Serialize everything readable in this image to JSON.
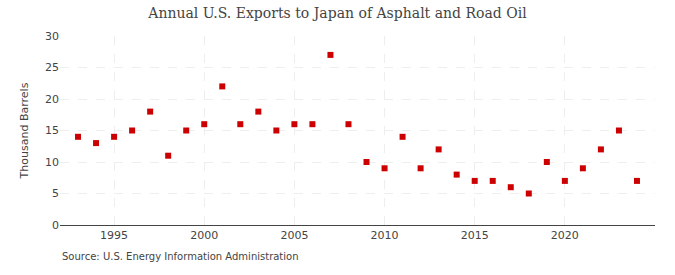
{
  "chart_data": {
    "type": "scatter",
    "title": "Annual U.S. Exports to Japan of Asphalt and Road Oil",
    "ylabel": "Thousand Barrels",
    "annotations": [
      "Source: U.S. Energy Information Administration"
    ],
    "x": [
      1993,
      1994,
      1995,
      1996,
      1997,
      1998,
      1999,
      2000,
      2001,
      2002,
      2003,
      2004,
      2005,
      2006,
      2007,
      2008,
      2009,
      2010,
      2011,
      2012,
      2013,
      2014,
      2015,
      2016,
      2017,
      2018,
      2019,
      2020,
      2021,
      2022,
      2023,
      2024
    ],
    "values": [
      14,
      13,
      14,
      15,
      18,
      11,
      15,
      16,
      22,
      16,
      18,
      15,
      16,
      16,
      27,
      16,
      10,
      9,
      14,
      9,
      12,
      8,
      7,
      7,
      6,
      5,
      10,
      7,
      9,
      12,
      15,
      7
    ],
    "color": "#cc0000",
    "marker": "square",
    "xlim": [
      1992,
      2025
    ],
    "xticks": [
      1995,
      2000,
      2005,
      2010,
      2015,
      2020
    ],
    "ylim": [
      0,
      30
    ],
    "yticks": [
      0,
      5,
      10,
      15,
      20,
      25,
      30
    ],
    "grid": true
  }
}
